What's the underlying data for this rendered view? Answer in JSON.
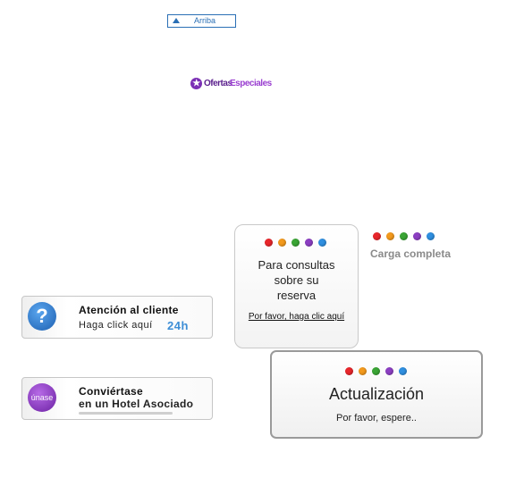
{
  "top_button": {
    "label": "Arriba"
  },
  "ofertas": {
    "part1": "Ofertas",
    "part2": "Especiales",
    "icon": "star-icon"
  },
  "dot_colors": [
    "#e8262b",
    "#f39a1d",
    "#3aa535",
    "#8c3fc2",
    "#2f8fe0"
  ],
  "consultas": {
    "title_line1": "Para consultas",
    "title_line2": "sobre su",
    "title_line3": "reserva",
    "link": "Por favor, haga clic aquí"
  },
  "carga": {
    "label": "Carga completa"
  },
  "atencion": {
    "title": "Atención al cliente",
    "subtitle": "Haga click aquí",
    "badge": "24h",
    "icon": "?"
  },
  "unase": {
    "icon_label": "únase",
    "line1": "Conviértase",
    "line2": "en un Hotel Asociado"
  },
  "actualizacion": {
    "title": "Actualización",
    "subtitle": "Por favor, espere.."
  }
}
